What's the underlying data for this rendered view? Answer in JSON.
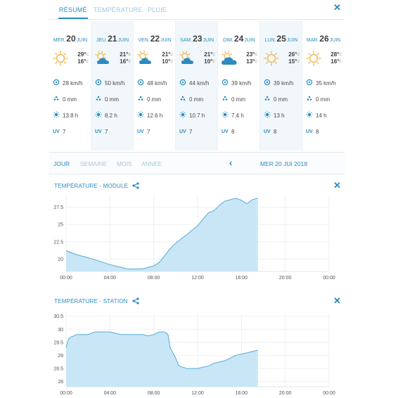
{
  "tabs": [
    {
      "label": "RÉSUMÉ",
      "active": true
    },
    {
      "label": "TEMPÉRATURE",
      "active": false
    },
    {
      "label": "PLUIE",
      "active": false
    }
  ],
  "forecast": [
    {
      "dow": "MER.",
      "num": "20",
      "month": "JUIN",
      "icon": "sun",
      "tmax": "29°",
      "tmin": "16°",
      "unit": "C",
      "wind": "28 km/h",
      "rain": "0 mm",
      "sun": "13.8 h",
      "uv_label": "UV",
      "uv": "7"
    },
    {
      "dow": "JEU.",
      "num": "21",
      "month": "JUIN",
      "icon": "partly-cloudy",
      "tmax": "21°",
      "tmin": "16°",
      "unit": "C",
      "wind": "50 km/h",
      "rain": "0 mm",
      "sun": "8.2 h",
      "uv_label": "UV",
      "uv": "7"
    },
    {
      "dow": "VEN.",
      "num": "22",
      "month": "JUIN",
      "icon": "partly-cloudy",
      "tmax": "21°",
      "tmin": "10°",
      "unit": "C",
      "wind": "48 km/h",
      "rain": "0 mm",
      "sun": "12.6 h",
      "uv_label": "UV",
      "uv": "7"
    },
    {
      "dow": "SAM.",
      "num": "23",
      "month": "JUIN",
      "icon": "partly-cloudy",
      "tmax": "21°",
      "tmin": "10°",
      "unit": "C",
      "wind": "44 km/h",
      "rain": "0 mm",
      "sun": "10.7 h",
      "uv_label": "UV",
      "uv": "7"
    },
    {
      "dow": "DIM.",
      "num": "24",
      "month": "JUIN",
      "icon": "cloudy",
      "tmax": "23°",
      "tmin": "13°",
      "unit": "C",
      "wind": "39 km/h",
      "rain": "0 mm",
      "sun": "7.4 h",
      "uv_label": "UV",
      "uv": "8"
    },
    {
      "dow": "LUN.",
      "num": "25",
      "month": "JUIN",
      "icon": "sun",
      "tmax": "26°",
      "tmin": "15°",
      "unit": "C",
      "wind": "39 km/h",
      "rain": "0 mm",
      "sun": "13 h",
      "uv_label": "UV",
      "uv": "8"
    },
    {
      "dow": "MAR.",
      "num": "26",
      "month": "JUIN",
      "icon": "sun",
      "tmax": "28°",
      "tmin": "16°",
      "unit": "C",
      "wind": "35 km/h",
      "rain": "0 mm",
      "sun": "14 h",
      "uv_label": "UV",
      "uv": "8"
    }
  ],
  "periods": [
    {
      "label": "JOUR",
      "active": true
    },
    {
      "label": "SEMAINE",
      "active": false
    },
    {
      "label": "MOIS",
      "active": false
    },
    {
      "label": "ANNEE",
      "active": false
    }
  ],
  "current_date": "MER 20 JUI 2018",
  "colors": {
    "accent": "#2a8bc2",
    "area_fill": "#c9e6f6",
    "area_line": "#55a9d6",
    "sun": "#f0b54a"
  },
  "charts": [
    {
      "title": "TEMPÉRATURE - MODULE"
    },
    {
      "title": "TEMPÉRATURE - STATION"
    }
  ],
  "chart_data": [
    {
      "type": "area",
      "title": "TEMPÉRATURE - MODULE",
      "x_ticks": [
        "00:00",
        "04:00",
        "08:00",
        "12:00",
        "16:00",
        "20:00",
        "00:00"
      ],
      "y_ticks": [
        "20",
        "22.5",
        "25",
        "27.5"
      ],
      "xlim": [
        0,
        24
      ],
      "ylim": [
        18.2,
        29.2
      ],
      "x": [
        0,
        0.5,
        1,
        2,
        3,
        4,
        5,
        5.5,
        6,
        7,
        7.5,
        8,
        8.5,
        9,
        9.5,
        10,
        11,
        11.5,
        12,
        12.5,
        13,
        13.5,
        14,
        14.5,
        15,
        15.5,
        16,
        16.5,
        17,
        17.5
      ],
      "y": [
        21.2,
        20.9,
        20.6,
        20.2,
        19.7,
        19.2,
        18.8,
        18.6,
        18.55,
        18.6,
        18.8,
        19.0,
        19.5,
        20.5,
        21.5,
        22.3,
        23.5,
        24.2,
        24.8,
        25.8,
        26.7,
        27.0,
        27.8,
        28.4,
        28.6,
        28.8,
        28.5,
        28.0,
        28.6,
        28.8
      ],
      "grid": true
    },
    {
      "type": "area",
      "title": "TEMPÉRATURE - STATION",
      "x_ticks": [
        "00:00",
        "04:00",
        "08:00",
        "12:00",
        "16:00",
        "20:00",
        "00:00"
      ],
      "y_ticks": [
        "28",
        "28.5",
        "29",
        "29.5",
        "30",
        "30.5"
      ],
      "xlim": [
        0,
        24
      ],
      "ylim": [
        27.8,
        30.6
      ],
      "x": [
        0,
        0.2,
        0.4,
        1,
        1.4,
        2,
        2.6,
        3,
        4,
        5,
        6,
        7,
        7.5,
        8,
        8.5,
        9,
        9.3,
        9.5,
        10,
        10.3,
        11,
        12,
        13,
        13.5,
        14,
        14.5,
        15,
        15.5,
        16,
        16.5,
        17,
        17.5
      ],
      "y": [
        29.3,
        29.6,
        29.7,
        29.8,
        29.8,
        29.8,
        29.9,
        29.9,
        29.9,
        29.8,
        29.8,
        29.8,
        29.75,
        29.8,
        29.9,
        29.9,
        29.8,
        29.3,
        28.9,
        28.6,
        28.5,
        28.5,
        28.6,
        28.7,
        28.75,
        28.8,
        28.9,
        29.0,
        29.05,
        29.1,
        29.15,
        29.2
      ],
      "grid": true
    }
  ]
}
